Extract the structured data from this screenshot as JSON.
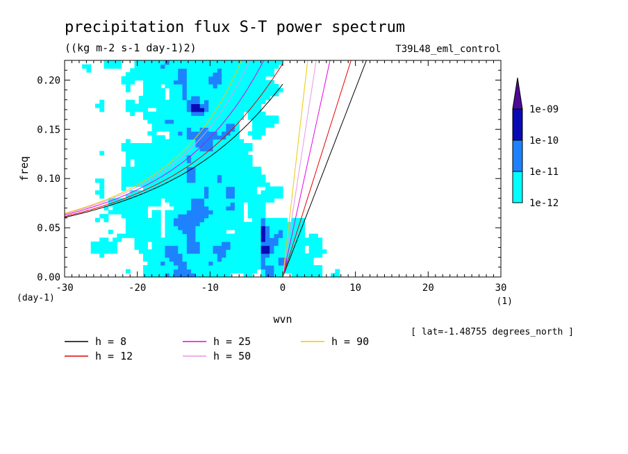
{
  "chart_data": {
    "type": "heatmap",
    "title": "precipitation flux S-T power spectrum",
    "units": "((kg m-2 s-1 day-1)2)",
    "experiment": "T39L48_eml_control",
    "xlabel": "wvn",
    "xunits": "(1)",
    "ylabel": "freq",
    "yunits": "(day-1)",
    "xlim": [
      -30,
      30
    ],
    "ylim": [
      0,
      0.22
    ],
    "xticks": [
      -30,
      -20,
      -10,
      0,
      10,
      20,
      30
    ],
    "xtick_labels": [
      "-30",
      "-20",
      "-10",
      "0",
      "10",
      "20",
      "30"
    ],
    "yticks": [
      0.0,
      0.05,
      0.1,
      0.15,
      0.2
    ],
    "ytick_labels": [
      "0.00",
      "0.05",
      "0.10",
      "0.15",
      "0.20"
    ],
    "location_note": "[ lat=-1.48755 degrees_north ]",
    "colorbar": {
      "levels": [
        "1e-12",
        "1e-11",
        "1e-10",
        "1e-09"
      ],
      "colors": [
        "#00ffff",
        "#1e82ff",
        "#0a0ab4",
        "#4b0a96"
      ]
    },
    "dispersion_curves": [
      {
        "name": "h = 8",
        "h": 8,
        "color": "#000000"
      },
      {
        "name": "h = 12",
        "h": 12,
        "color": "#e60000"
      },
      {
        "name": "h = 25",
        "h": 25,
        "color": "#e600e6"
      },
      {
        "name": "h = 50",
        "h": 50,
        "color": "#e696e6"
      },
      {
        "name": "h = 90",
        "h": 90,
        "color": "#f0c800"
      }
    ]
  }
}
